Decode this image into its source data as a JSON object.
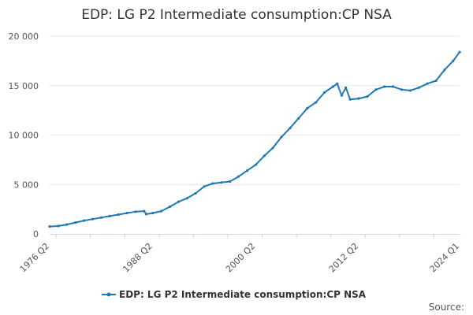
{
  "chart_data": {
    "type": "line",
    "title": "EDP: LG P2 Intermediate consumption:CP NSA",
    "xlabel": "",
    "ylabel": "",
    "ylim": [
      0,
      20000
    ],
    "yticks": [
      0,
      5000,
      10000,
      15000,
      20000
    ],
    "ytick_labels": [
      "0",
      "5 000",
      "10 000",
      "15 000",
      "20 000"
    ],
    "xticks": [
      "1976 Q2",
      "1988 Q2",
      "2000 Q2",
      "2012 Q2",
      "2024 Q1"
    ],
    "grid": true,
    "legend": "bottom",
    "color": "#1f7ab4",
    "series": [
      {
        "name": "EDP: LG P2 Intermediate consumption:CP NSA",
        "x": [
          "1976 Q2",
          "1977 Q2",
          "1978 Q2",
          "1979 Q2",
          "1980 Q2",
          "1981 Q2",
          "1982 Q2",
          "1983 Q2",
          "1984 Q2",
          "1985 Q2",
          "1986 Q2",
          "1987 Q2",
          "1987 Q3",
          "1988 Q2",
          "1989 Q2",
          "1990 Q2",
          "1991 Q2",
          "1992 Q2",
          "1993 Q2",
          "1994 Q2",
          "1995 Q2",
          "1996 Q2",
          "1997 Q2",
          "1998 Q2",
          "1999 Q2",
          "2000 Q2",
          "2001 Q2",
          "2002 Q2",
          "2003 Q2",
          "2004 Q2",
          "2005 Q2",
          "2006 Q2",
          "2007 Q2",
          "2008 Q2",
          "2009 Q2",
          "2009 Q4",
          "2010 Q2",
          "2010 Q4",
          "2011 Q2",
          "2012 Q2",
          "2013 Q2",
          "2014 Q2",
          "2015 Q2",
          "2016 Q2",
          "2017 Q2",
          "2018 Q2",
          "2019 Q2",
          "2020 Q2",
          "2021 Q2",
          "2022 Q2",
          "2023 Q2",
          "2024 Q1"
        ],
        "values": [
          750,
          800,
          950,
          1150,
          1350,
          1500,
          1650,
          1800,
          1950,
          2100,
          2250,
          2300,
          2000,
          2100,
          2300,
          2750,
          3250,
          3600,
          4100,
          4800,
          5100,
          5200,
          5300,
          5800,
          6400,
          7000,
          7900,
          8700,
          9800,
          10700,
          11700,
          12700,
          13300,
          14300,
          14900,
          15200,
          14000,
          14800,
          13600,
          13700,
          13900,
          14600,
          14900,
          14900,
          14600,
          14500,
          14800,
          15200,
          15500,
          16600,
          17500,
          18400
        ]
      }
    ],
    "source_label": "Source:"
  }
}
